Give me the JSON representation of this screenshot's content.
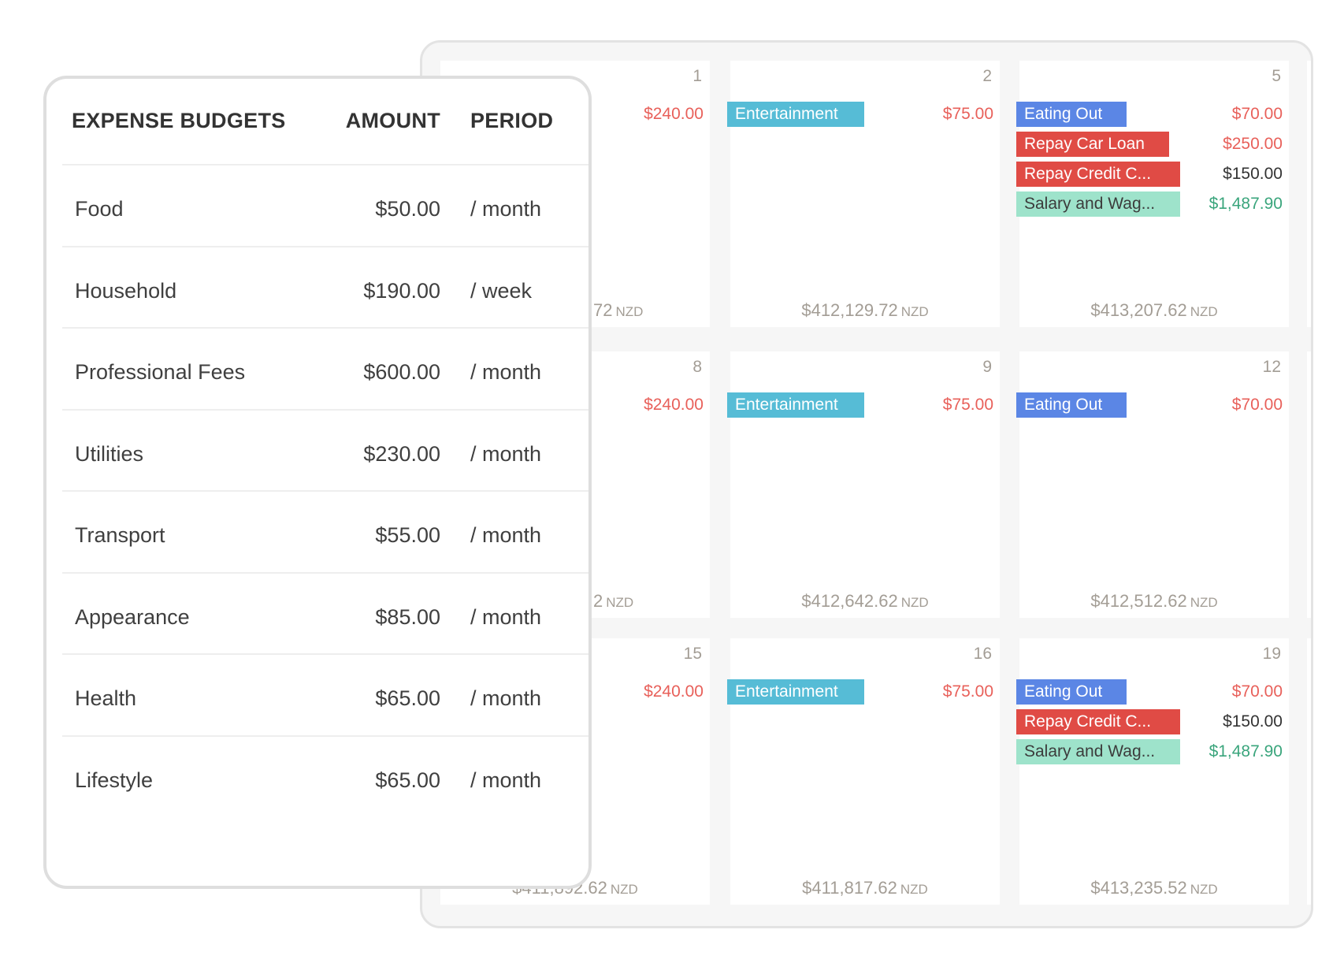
{
  "budgets": {
    "headers": {
      "category": "EXPENSE BUDGETS",
      "amount": "AMOUNT",
      "period": "PERIOD"
    },
    "rows": [
      {
        "category": "Food",
        "amount": "$50.00",
        "period": "/ month"
      },
      {
        "category": "Household",
        "amount": "$190.00",
        "period": "/ week"
      },
      {
        "category": "Professional Fees",
        "amount": "$600.00",
        "period": "/ month"
      },
      {
        "category": "Utilities",
        "amount": "$230.00",
        "period": "/ month"
      },
      {
        "category": "Transport",
        "amount": "$55.00",
        "period": "/ month"
      },
      {
        "category": "Appearance",
        "amount": "$85.00",
        "period": "/ month"
      },
      {
        "category": "Health",
        "amount": "$65.00",
        "period": "/ month"
      },
      {
        "category": "Lifestyle",
        "amount": "$65.00",
        "period": "/ month"
      }
    ]
  },
  "colors": {
    "cyan": "#56bcd6",
    "blue": "#5b86e5",
    "red": "#e04b45",
    "mint": "#9ee3cb",
    "expense_text": "#e8605a",
    "income_text": "#3aa57c",
    "neutral_text": "#333333"
  },
  "calendar": {
    "currency": "NZD",
    "days": [
      {
        "day": "1",
        "balance": "72",
        "partial": true,
        "entries": [
          {
            "label": "",
            "color": "",
            "amount": "$240.00",
            "kind": "expense_text"
          }
        ]
      },
      {
        "day": "2",
        "balance": "$412,129.72",
        "entries": [
          {
            "label": "Entertainment",
            "color": "cyan",
            "amount": "$75.00",
            "kind": "expense_text"
          }
        ]
      },
      {
        "day": "5",
        "balance": "$413,207.62",
        "entries": [
          {
            "label": "Eating Out",
            "color": "blue",
            "amount": "$70.00",
            "kind": "expense_text"
          },
          {
            "label": "Repay Car Loan",
            "color": "red",
            "amount": "$250.00",
            "kind": "expense_text"
          },
          {
            "label": "Repay Credit C...",
            "color": "red",
            "amount": "$150.00",
            "kind": "neutral_text"
          },
          {
            "label": "Salary and Wag...",
            "color": "mint",
            "amount": "$1,487.90",
            "kind": "income_text"
          }
        ]
      },
      {
        "day": "8",
        "balance": "2",
        "partial": true,
        "entries": [
          {
            "label": "",
            "color": "",
            "amount": "$240.00",
            "kind": "expense_text"
          }
        ]
      },
      {
        "day": "9",
        "balance": "$412,642.62",
        "entries": [
          {
            "label": "Entertainment",
            "color": "cyan",
            "amount": "$75.00",
            "kind": "expense_text"
          }
        ]
      },
      {
        "day": "12",
        "balance": "$412,512.62",
        "entries": [
          {
            "label": "Eating Out",
            "color": "blue",
            "amount": "$70.00",
            "kind": "expense_text"
          }
        ]
      },
      {
        "day": "15",
        "balance": "$411,892.62",
        "entries": [
          {
            "label": "",
            "color": "",
            "amount": "$240.00",
            "kind": "expense_text"
          }
        ]
      },
      {
        "day": "16",
        "balance": "$411,817.62",
        "entries": [
          {
            "label": "Entertainment",
            "color": "cyan",
            "amount": "$75.00",
            "kind": "expense_text"
          }
        ]
      },
      {
        "day": "19",
        "balance": "$413,235.52",
        "entries": [
          {
            "label": "Eating Out",
            "color": "blue",
            "amount": "$70.00",
            "kind": "expense_text"
          },
          {
            "label": "Repay Credit C...",
            "color": "red",
            "amount": "$150.00",
            "kind": "neutral_text"
          },
          {
            "label": "Salary and Wag...",
            "color": "mint",
            "amount": "$1,487.90",
            "kind": "income_text"
          }
        ]
      }
    ]
  }
}
